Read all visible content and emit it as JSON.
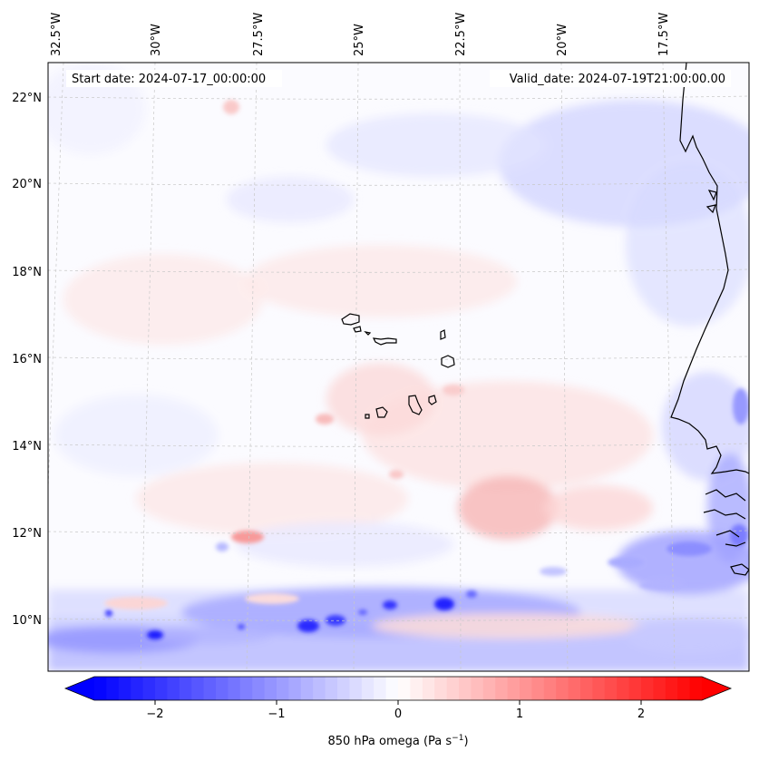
{
  "map": {
    "start_label": "Start date: 2024-07-17_00:00:00",
    "valid_label": "Valid_date: 2024-07-19T21:00:00.00",
    "lon_labels": [
      "32.5°W",
      "30°W",
      "27.5°W",
      "25°W",
      "22.5°W",
      "20°W",
      "17.5°W"
    ],
    "lat_labels": [
      "22°N",
      "20°N",
      "18°N",
      "16°N",
      "14°N",
      "12°N",
      "10°N"
    ],
    "field": "850 hPa omega",
    "colormap": "bwr",
    "features": [
      "Cabo Verde islands",
      "West African coastline",
      "ITCZ band of ascent (negative omega) near 9.5–10.5°N"
    ]
  },
  "colorbar": {
    "label": "850 hPa omega (Pa s",
    "label_sup": "−1",
    "label_close": ")",
    "ticks": [
      "−2",
      "−1",
      "0",
      "1",
      "2"
    ],
    "tick_values": [
      -2,
      -1,
      0,
      1,
      2
    ],
    "range": [
      -2.5,
      2.5
    ],
    "extend": "both",
    "colors": {
      "negative": "#0000ff",
      "zero": "#ffffff",
      "positive": "#ff0000"
    }
  }
}
